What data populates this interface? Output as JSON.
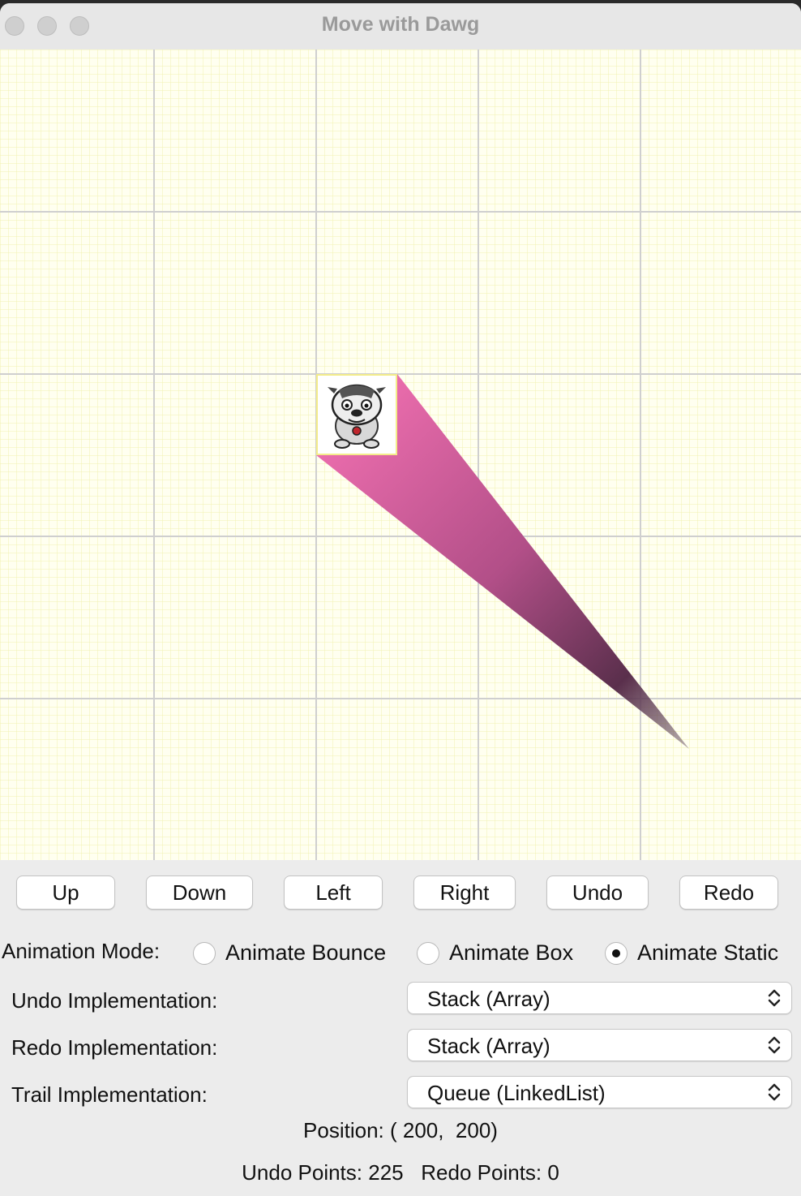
{
  "window": {
    "title": "Move with Dawg"
  },
  "buttons": {
    "up": "Up",
    "down": "Down",
    "left": "Left",
    "right": "Right",
    "undo": "Undo",
    "redo": "Redo"
  },
  "animation": {
    "label": "Animation Mode:",
    "options": [
      "Animate Bounce",
      "Animate Box",
      "Animate Static"
    ],
    "selected": "Animate Static"
  },
  "undo_impl": {
    "label": "Undo Implementation:",
    "value": "Stack (Array)"
  },
  "redo_impl": {
    "label": "Redo Implementation:",
    "value": "Stack (Array)"
  },
  "trail_impl": {
    "label": "Trail Implementation:",
    "value": "Queue (LinkedList)"
  },
  "status": {
    "position": "Position: ( 200,  200)",
    "points": "Undo Points: 225   Redo Points: 0"
  },
  "colors": {
    "trail_light": "#e86aa8",
    "trail_dark": "#3e2a38",
    "grid_major": "#cfcfcf",
    "grid_minor": "#f5f5b8",
    "canvas_bg": "#fffff0"
  }
}
